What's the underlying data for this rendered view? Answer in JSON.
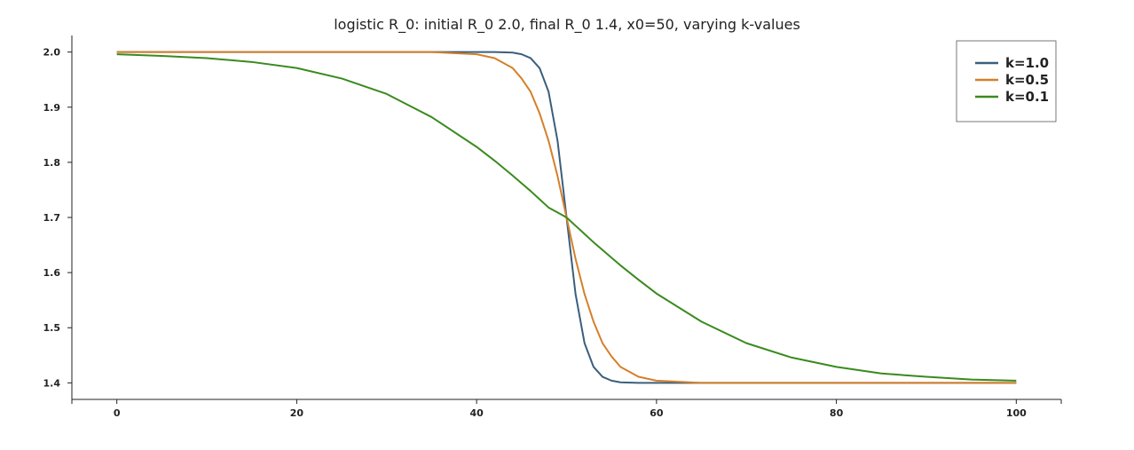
{
  "chart_data": {
    "type": "line",
    "title": "logistic R_0: initial R_0 2.0, final R_0 1.4, x0=50, varying k-values",
    "xlabel": "",
    "ylabel": "",
    "xlim": [
      -5,
      105
    ],
    "ylim": [
      1.37,
      2.03
    ],
    "x_ticks": [
      "0",
      "20",
      "40",
      "60",
      "80",
      "100"
    ],
    "y_ticks": [
      "1.4",
      "1.5",
      "1.6",
      "1.7",
      "1.8",
      "1.9",
      "2.0"
    ],
    "grid": false,
    "legend_position": "top-right",
    "x": [
      0,
      5,
      10,
      15,
      20,
      25,
      30,
      35,
      40,
      42,
      44,
      45,
      46,
      47,
      48,
      49,
      50,
      51,
      52,
      53,
      54,
      55,
      56,
      58,
      60,
      65,
      70,
      75,
      80,
      85,
      90,
      95,
      100
    ],
    "series": [
      {
        "name": "k=1.0",
        "color": "#3a5f7d",
        "values": [
          2.0,
          2.0,
          2.0,
          2.0,
          2.0,
          2.0,
          2.0,
          2.0,
          2.0,
          2.0,
          1.999,
          1.996,
          1.989,
          1.971,
          1.928,
          1.839,
          1.7,
          1.561,
          1.472,
          1.429,
          1.411,
          1.404,
          1.401,
          1.4,
          1.4,
          1.4,
          1.4,
          1.4,
          1.4,
          1.4,
          1.4,
          1.4,
          1.4
        ]
      },
      {
        "name": "k=0.5",
        "color": "#d4802a",
        "values": [
          2.0,
          2.0,
          2.0,
          2.0,
          2.0,
          2.0,
          2.0,
          2.0,
          1.996,
          1.989,
          1.971,
          1.952,
          1.928,
          1.889,
          1.839,
          1.775,
          1.7,
          1.625,
          1.561,
          1.511,
          1.472,
          1.448,
          1.429,
          1.411,
          1.404,
          1.4,
          1.4,
          1.4,
          1.4,
          1.4,
          1.4,
          1.4,
          1.4
        ]
      },
      {
        "name": "k=0.1",
        "color": "#3a8a1e",
        "values": [
          1.996,
          1.993,
          1.989,
          1.982,
          1.971,
          1.952,
          1.924,
          1.882,
          1.828,
          1.803,
          1.776,
          1.762,
          1.748,
          1.733,
          1.718,
          1.709,
          1.7,
          1.685,
          1.67,
          1.655,
          1.641,
          1.627,
          1.613,
          1.587,
          1.562,
          1.511,
          1.472,
          1.446,
          1.429,
          1.417,
          1.411,
          1.406,
          1.404
        ]
      }
    ]
  }
}
